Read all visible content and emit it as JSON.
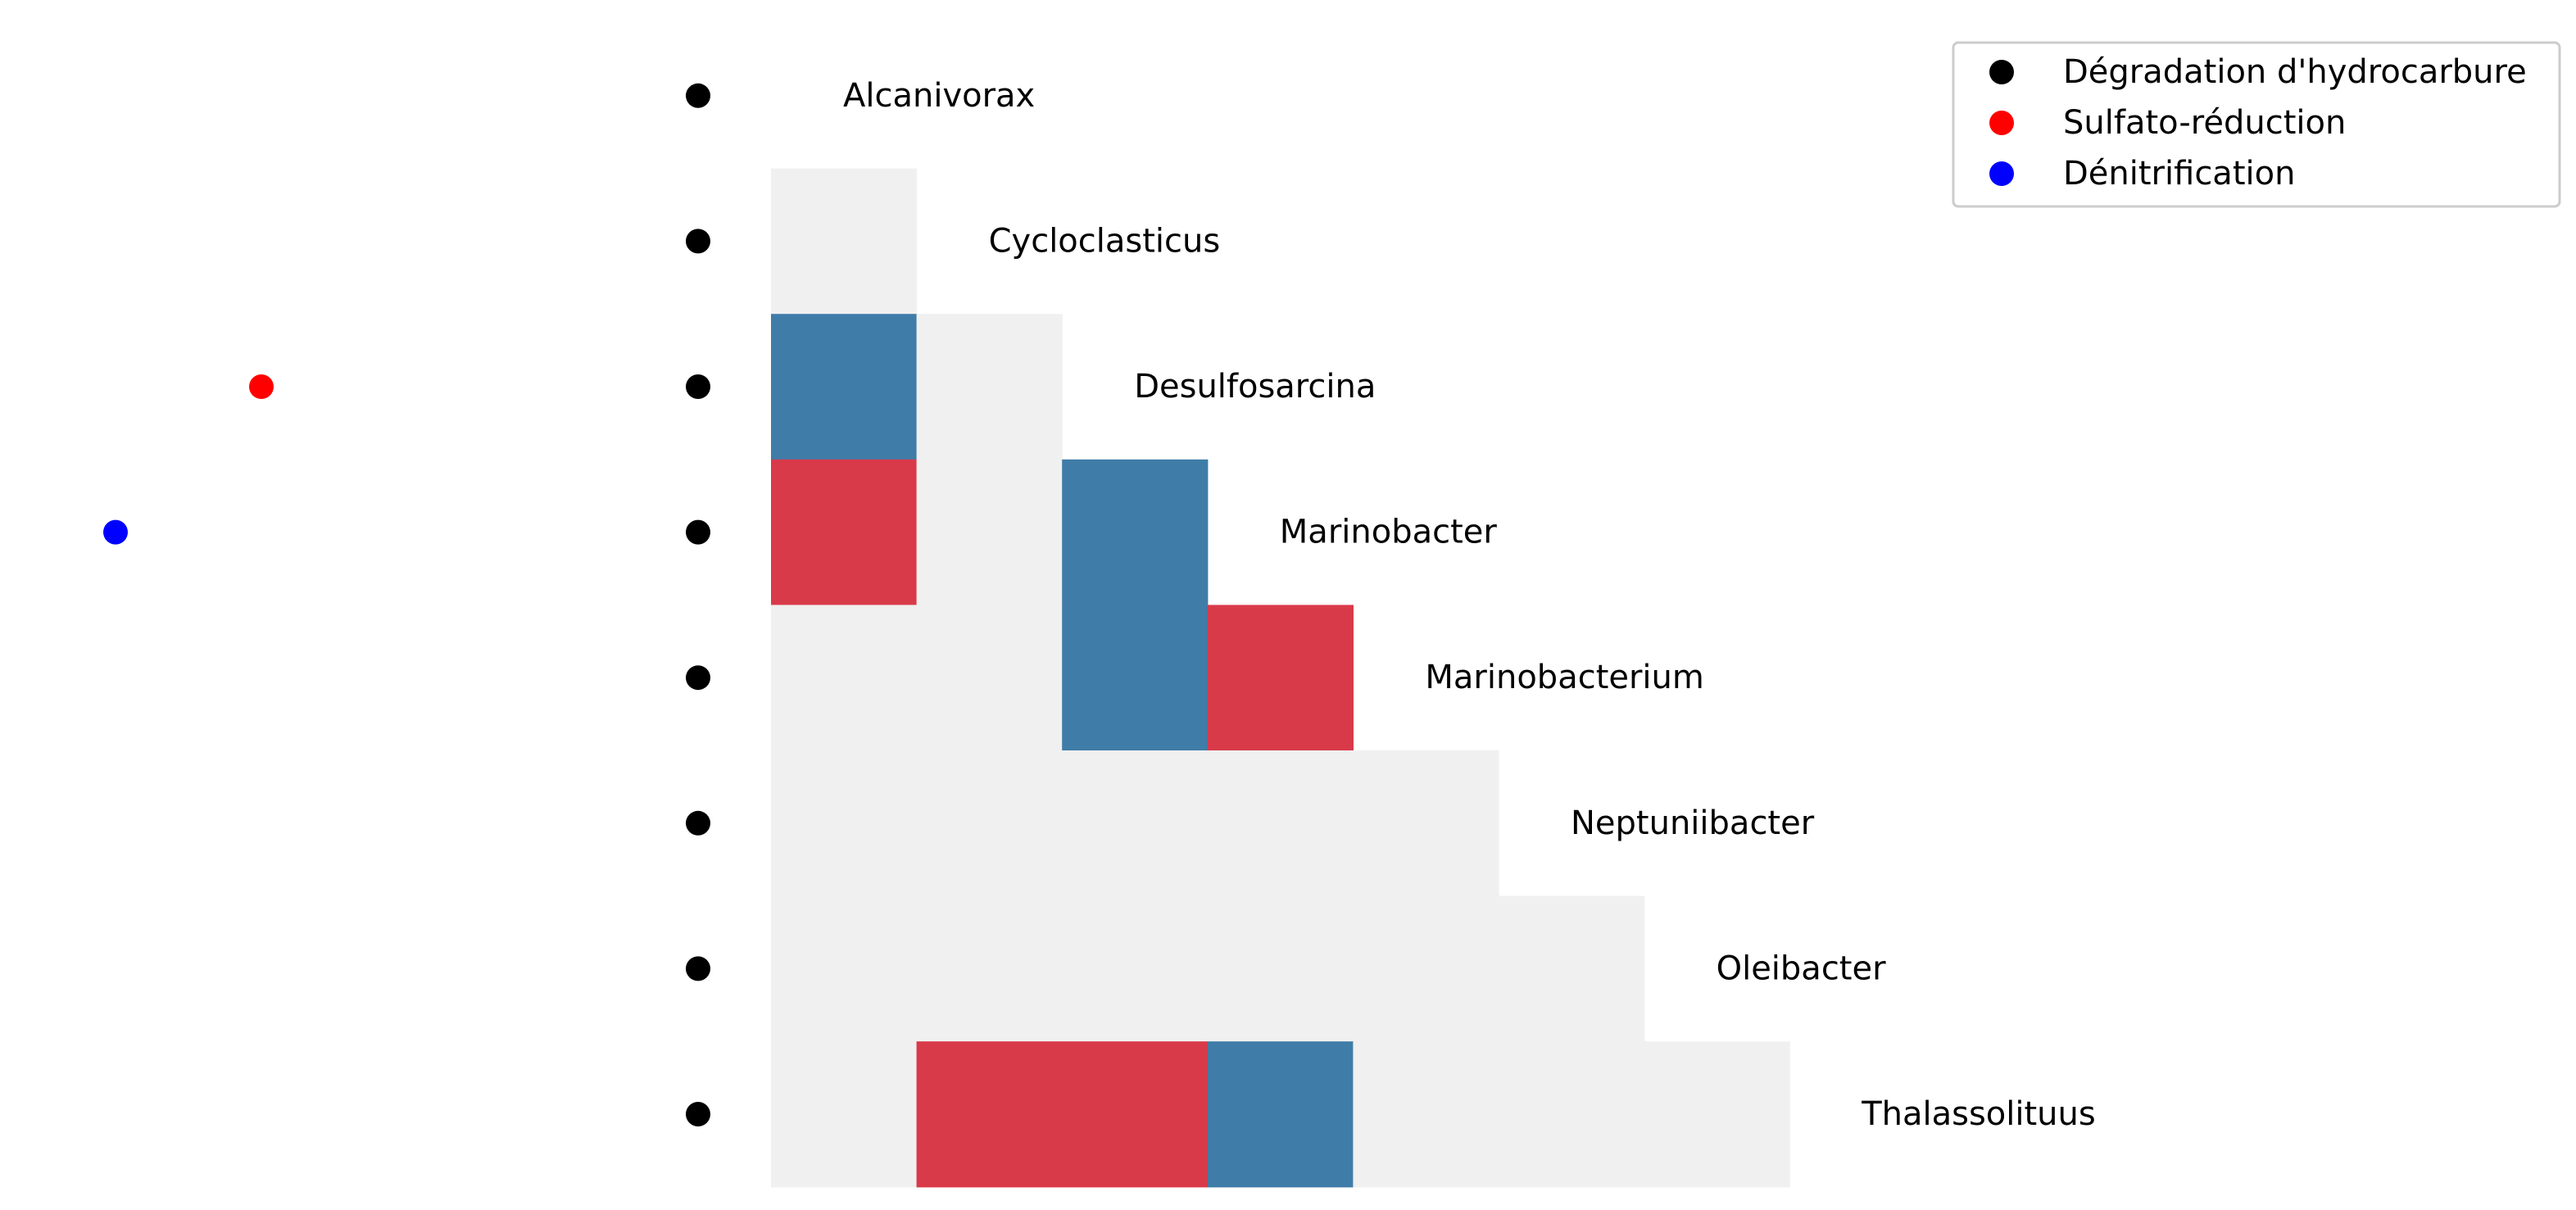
{
  "chart_data": {
    "type": "heatmap",
    "subtype": "lower-triangular correlation matrix with row labels and metabolic trait markers",
    "title": "",
    "xlabel": "",
    "ylabel": "",
    "grid": false,
    "legend_position": "top-right",
    "row_labels": [
      "Alcanivorax",
      "Cycloclasticus",
      "Desulfosarcina",
      "Marinobacter",
      "Marinobacterium",
      "Neptuniibacter",
      "Oleibacter",
      "Thalassolituus"
    ],
    "cell_colors": {
      "positive": "#d93a49",
      "negative": "#407ca8",
      "neutral": "#f0f0f0"
    },
    "matrix": [
      [],
      [
        0
      ],
      [
        -1,
        0
      ],
      [
        1,
        0,
        -1
      ],
      [
        0,
        0,
        -1,
        1
      ],
      [
        0,
        0,
        0,
        0,
        0
      ],
      [
        0,
        0,
        0,
        0,
        0,
        0
      ],
      [
        0,
        1,
        1,
        -1,
        0,
        0,
        0
      ]
    ],
    "traits": [
      {
        "name": "Dégradation d'hydrocarbure",
        "color": "#000000",
        "column": 2,
        "rows": [
          0,
          1,
          2,
          3,
          4,
          5,
          6,
          7
        ]
      },
      {
        "name": "Sulfato-réduction",
        "color": "#ff0000",
        "column": 1,
        "rows": [
          2
        ]
      },
      {
        "name": "Dénitrification",
        "color": "#0000ff",
        "column": 0,
        "rows": [
          3
        ]
      }
    ],
    "legend": [
      {
        "label": "Dégradation d'hydrocarbure",
        "color": "#000000"
      },
      {
        "label": "Sulfato-réduction",
        "color": "#ff0000"
      },
      {
        "label": "Dénitrification",
        "color": "#0000ff"
      }
    ]
  }
}
